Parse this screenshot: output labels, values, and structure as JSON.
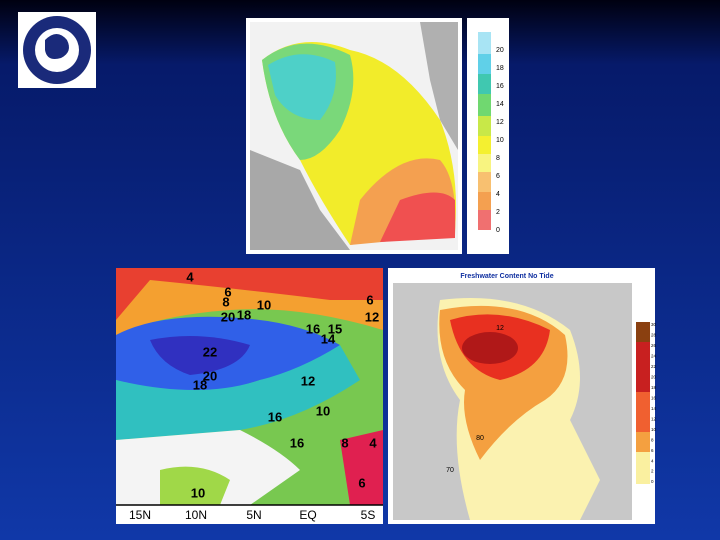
{
  "top_map": {
    "colorbar_labels": [
      "20",
      "18",
      "16",
      "14",
      "12",
      "10",
      "8",
      "6",
      "4",
      "2",
      "0"
    ]
  },
  "left_map": {
    "contour_labels": [
      "4",
      "6",
      "8",
      "10",
      "18",
      "20",
      "6",
      "12",
      "16",
      "15",
      "14",
      "22",
      "20",
      "18",
      "12",
      "16",
      "10",
      "16",
      "8",
      "4",
      "6",
      "10"
    ],
    "axis_labels": [
      "15N",
      "10N",
      "5N",
      "EQ",
      "5S"
    ]
  },
  "right_map": {
    "title": "Freshwater Content No Tide",
    "map_labels": [
      "12",
      "80",
      "70"
    ],
    "colorbar_labels": [
      "30",
      "28",
      "26",
      "24",
      "22",
      "20",
      "18",
      "16",
      "14",
      "12",
      "10",
      "8",
      "6",
      "4",
      "2",
      "0"
    ]
  }
}
